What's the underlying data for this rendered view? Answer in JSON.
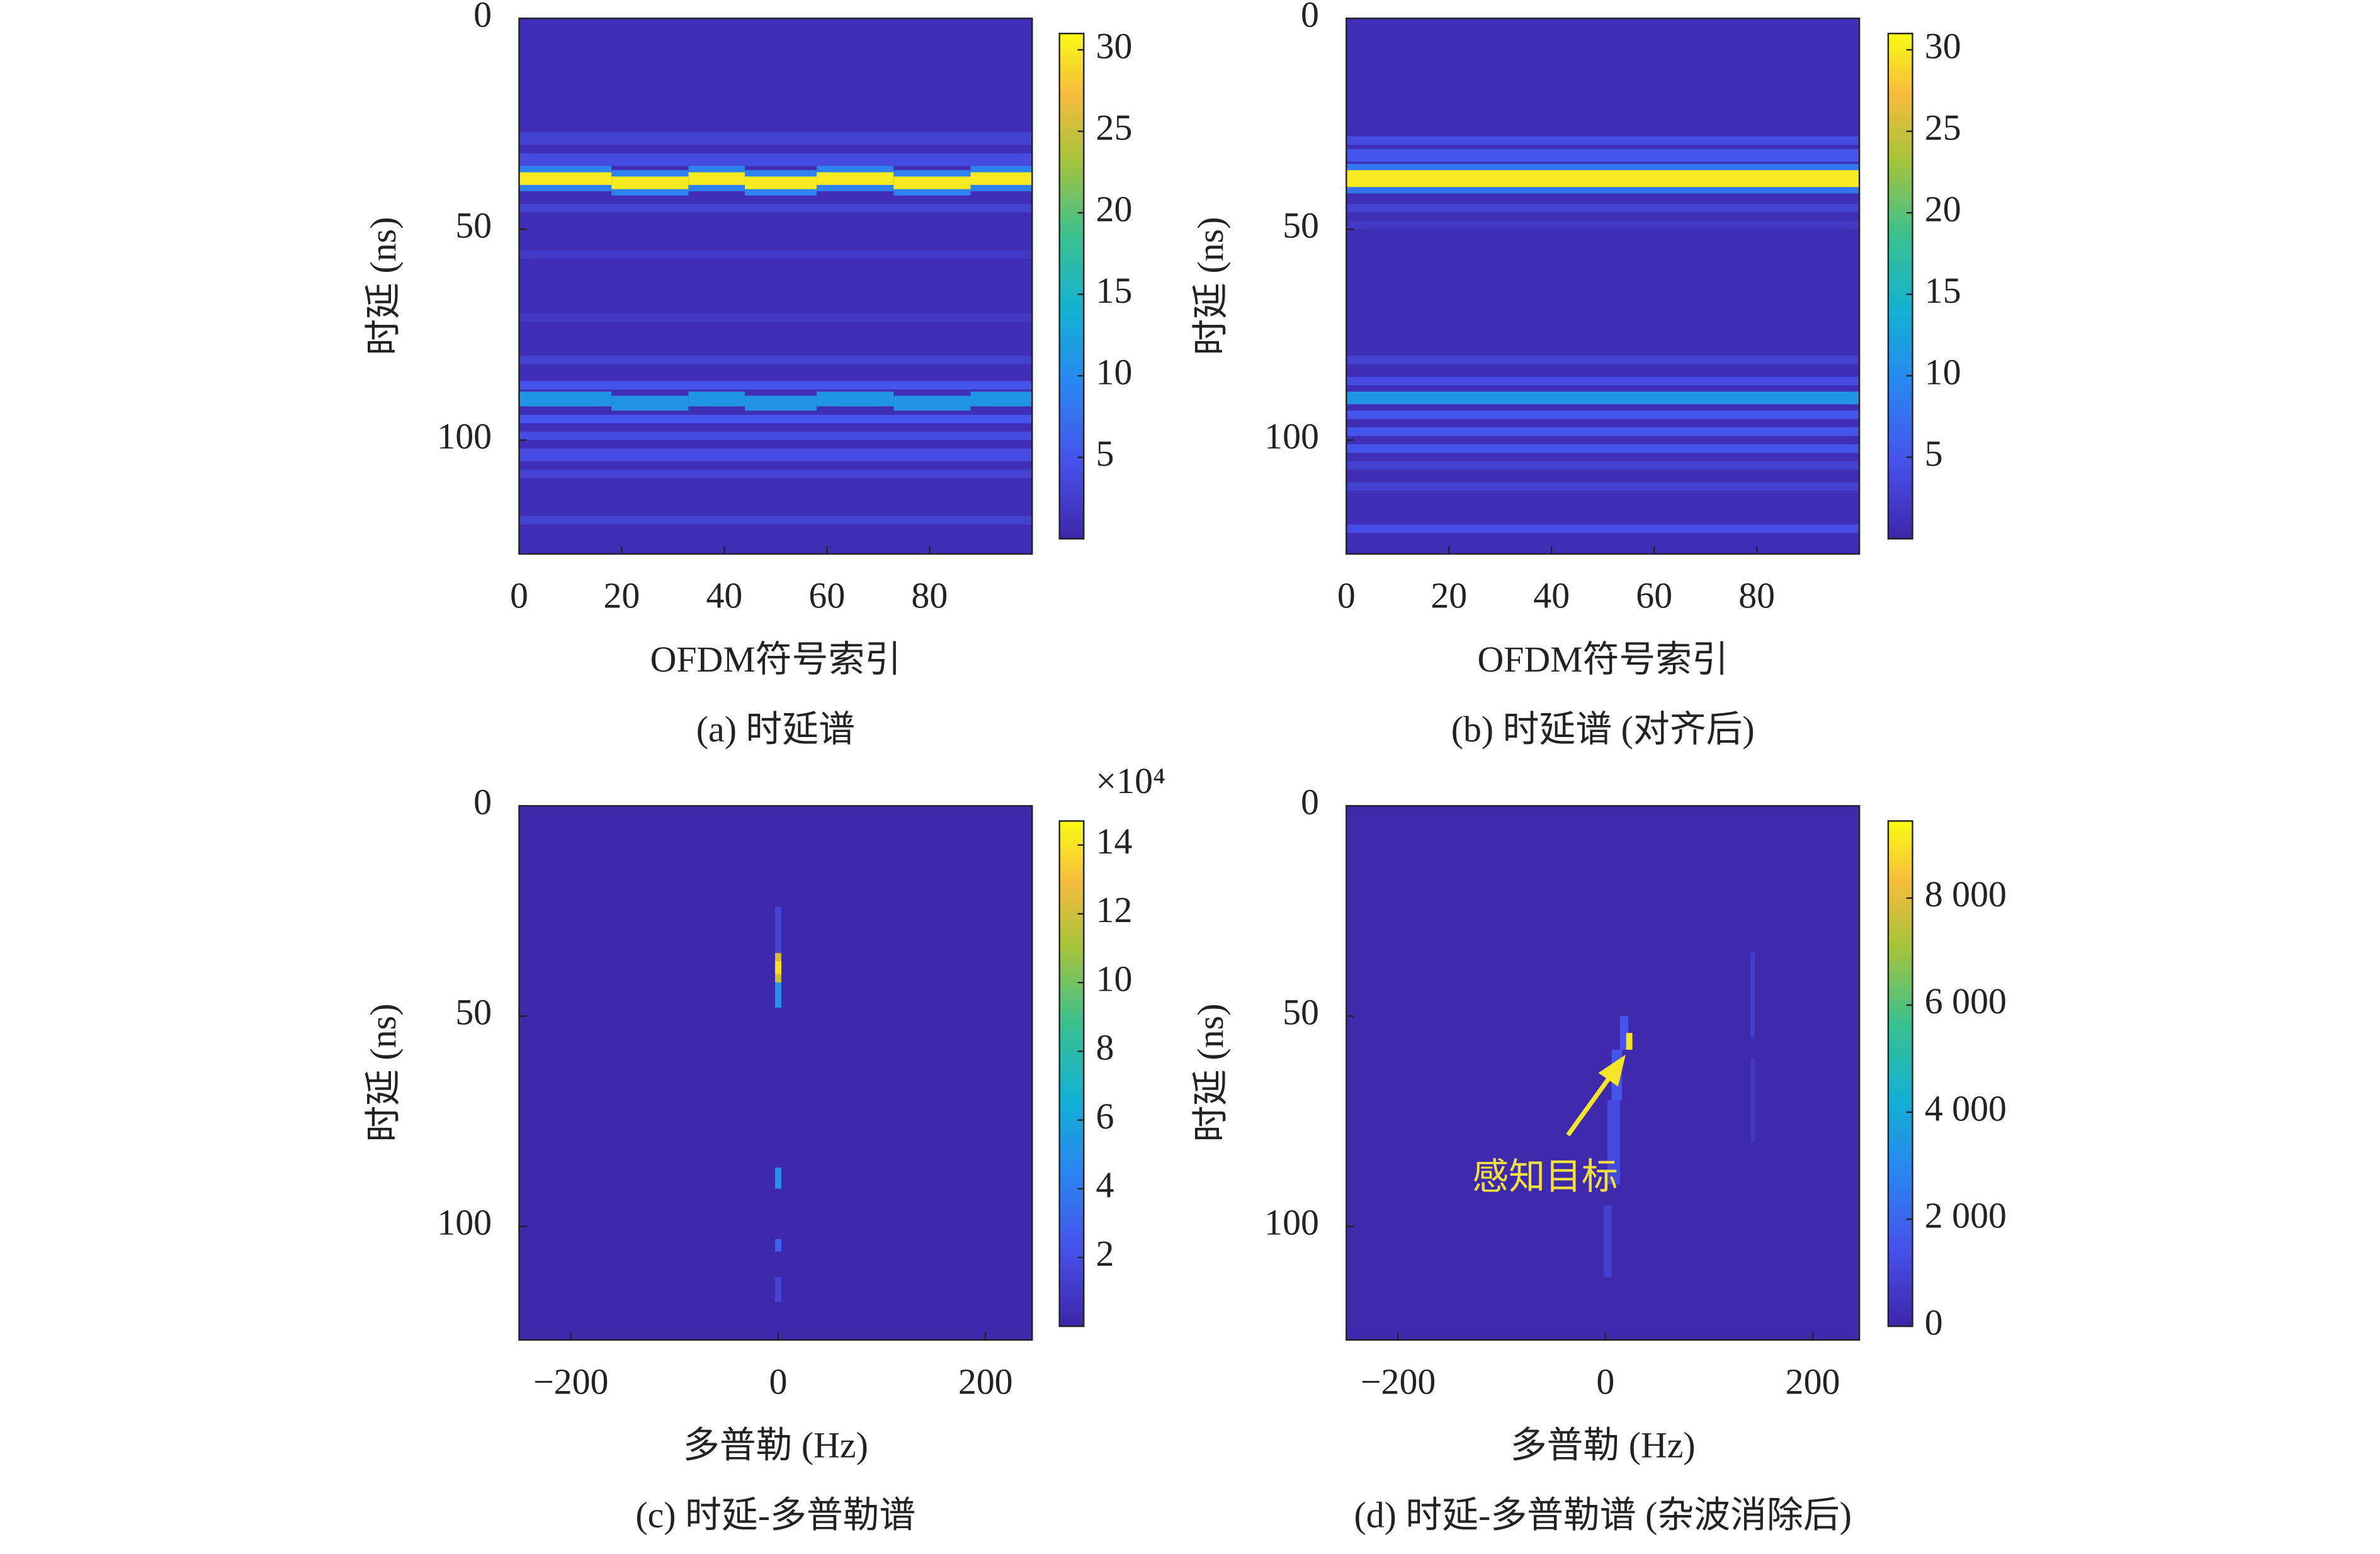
{
  "chart_data": [
    {
      "type": "heatmap",
      "caption": "(a) 时延谱",
      "x_label": "OFDM符号索引",
      "y_label": "时延 (ns)",
      "xlim": [
        0,
        100
      ],
      "ylim": [
        0,
        127
      ],
      "xticks": [
        0,
        20,
        40,
        60,
        80
      ],
      "yticks": [
        0,
        50,
        100
      ],
      "clim": [
        0,
        31
      ],
      "cticks": [
        5,
        10,
        15,
        20,
        25,
        30
      ],
      "background": 1,
      "cells": [
        [
          0,
          100,
          27,
          30,
          3
        ],
        [
          0,
          100,
          32,
          35,
          4
        ],
        [
          0,
          100,
          44,
          46,
          3
        ],
        [
          0,
          100,
          55,
          57,
          2
        ],
        [
          0,
          100,
          70,
          72,
          2
        ],
        [
          0,
          100,
          80,
          82,
          3
        ],
        [
          0,
          100,
          86,
          88,
          5
        ],
        [
          0,
          100,
          94,
          96,
          5
        ],
        [
          0,
          100,
          98,
          100,
          4
        ],
        [
          0,
          100,
          102,
          105,
          4
        ],
        [
          0,
          100,
          107,
          109,
          3
        ],
        [
          0,
          100,
          118,
          120,
          3
        ],
        [
          0,
          18,
          35,
          41,
          9
        ],
        [
          0,
          18,
          36.5,
          39.5,
          30
        ],
        [
          18,
          33,
          36,
          42,
          9
        ],
        [
          18,
          33,
          37.5,
          40.5,
          30
        ],
        [
          33,
          44,
          35,
          41,
          9
        ],
        [
          33,
          44,
          36.5,
          39.5,
          30
        ],
        [
          44,
          58,
          36,
          42,
          9
        ],
        [
          44,
          58,
          37.5,
          40.5,
          30
        ],
        [
          58,
          73,
          35,
          41,
          9
        ],
        [
          58,
          73,
          36.5,
          39.5,
          30
        ],
        [
          73,
          88,
          36,
          42,
          9
        ],
        [
          73,
          88,
          37.5,
          40.5,
          30
        ],
        [
          88,
          100,
          35,
          41,
          9
        ],
        [
          88,
          100,
          36.5,
          39.5,
          30
        ],
        [
          0,
          18,
          88.5,
          92,
          11
        ],
        [
          18,
          33,
          89.5,
          93,
          11
        ],
        [
          33,
          44,
          88.5,
          92,
          11
        ],
        [
          44,
          58,
          89.5,
          93,
          11
        ],
        [
          58,
          73,
          88.5,
          92,
          11
        ],
        [
          73,
          88,
          89.5,
          93,
          11
        ],
        [
          88,
          100,
          88.5,
          92,
          11
        ]
      ]
    },
    {
      "type": "heatmap",
      "caption": "(b) 时延谱 (对齐后)",
      "x_label": "OFDM符号索引",
      "y_label": "时延 (ns)",
      "xlim": [
        0,
        100
      ],
      "ylim": [
        0,
        127
      ],
      "xticks": [
        0,
        20,
        40,
        60,
        80
      ],
      "yticks": [
        0,
        50,
        100
      ],
      "clim": [
        0,
        31
      ],
      "cticks": [
        5,
        10,
        15,
        20,
        25,
        30
      ],
      "background": 1,
      "cells": [
        [
          0,
          100,
          28,
          30,
          4
        ],
        [
          0,
          100,
          31,
          34,
          5
        ],
        [
          0,
          100,
          34.5,
          41.5,
          8
        ],
        [
          0,
          100,
          36,
          40,
          30
        ],
        [
          0,
          100,
          44,
          46,
          3
        ],
        [
          0,
          100,
          48,
          50,
          2
        ],
        [
          0,
          100,
          80,
          82,
          3
        ],
        [
          0,
          100,
          85,
          87,
          4
        ],
        [
          0,
          100,
          88.5,
          91.5,
          11
        ],
        [
          0,
          100,
          93,
          95,
          5
        ],
        [
          0,
          100,
          97,
          99,
          5
        ],
        [
          0,
          100,
          101,
          103,
          5
        ],
        [
          0,
          100,
          105,
          107,
          3
        ],
        [
          0,
          100,
          110,
          112,
          3
        ],
        [
          0,
          100,
          120,
          122,
          4
        ]
      ]
    },
    {
      "type": "heatmap",
      "caption": "(c) 时延-多普勒谱",
      "x_label": "多普勒 (Hz)",
      "y_label": "时延 (ns)",
      "xlim": [
        -250,
        245
      ],
      "ylim": [
        0,
        127
      ],
      "xticks": [
        {
          "value": -200,
          "label": "−200"
        },
        0,
        200
      ],
      "yticks": [
        0,
        50,
        100
      ],
      "clim": [
        0,
        14.7
      ],
      "cticks": [
        2,
        4,
        6,
        8,
        10,
        12,
        14
      ],
      "colorbar_exponent": "×10⁴",
      "background": 0.1,
      "cells": [
        [
          -3,
          3,
          24,
          35,
          1.5
        ],
        [
          -3,
          3,
          35,
          42,
          12
        ],
        [
          -3,
          3,
          37,
          40,
          14
        ],
        [
          -3,
          3,
          42,
          48,
          5
        ],
        [
          -3,
          3,
          86,
          91,
          5
        ],
        [
          -3,
          3,
          103,
          106,
          3
        ],
        [
          -3,
          3,
          112,
          118,
          1.5
        ]
      ]
    },
    {
      "type": "heatmap",
      "caption": "(d) 时延-多普勒谱 (杂波消除后)",
      "x_label": "多普勒 (Hz)",
      "y_label": "时延 (ns)",
      "xlim": [
        -250,
        245
      ],
      "ylim": [
        0,
        127
      ],
      "xticks": [
        {
          "value": -200,
          "label": "−200"
        },
        0,
        200
      ],
      "yticks": [
        0,
        50,
        100
      ],
      "clim": [
        0,
        9440
      ],
      "cticks": [
        0,
        {
          "value": 2000,
          "label": "2 000"
        },
        {
          "value": 4000,
          "label": "4 000"
        },
        {
          "value": 6000,
          "label": "6 000"
        },
        {
          "value": 8000,
          "label": "8 000"
        }
      ],
      "background": 100,
      "annotation": "感知目标",
      "cells": [
        [
          14,
          22,
          50,
          58,
          1500
        ],
        [
          20,
          26,
          54,
          58,
          9000
        ],
        [
          6,
          16,
          58,
          70,
          1500
        ],
        [
          2,
          14,
          70,
          90,
          1200
        ],
        [
          -2,
          6,
          95,
          112,
          800
        ],
        [
          140,
          144,
          35,
          55,
          800
        ],
        [
          140,
          144,
          60,
          80,
          600
        ]
      ]
    }
  ]
}
